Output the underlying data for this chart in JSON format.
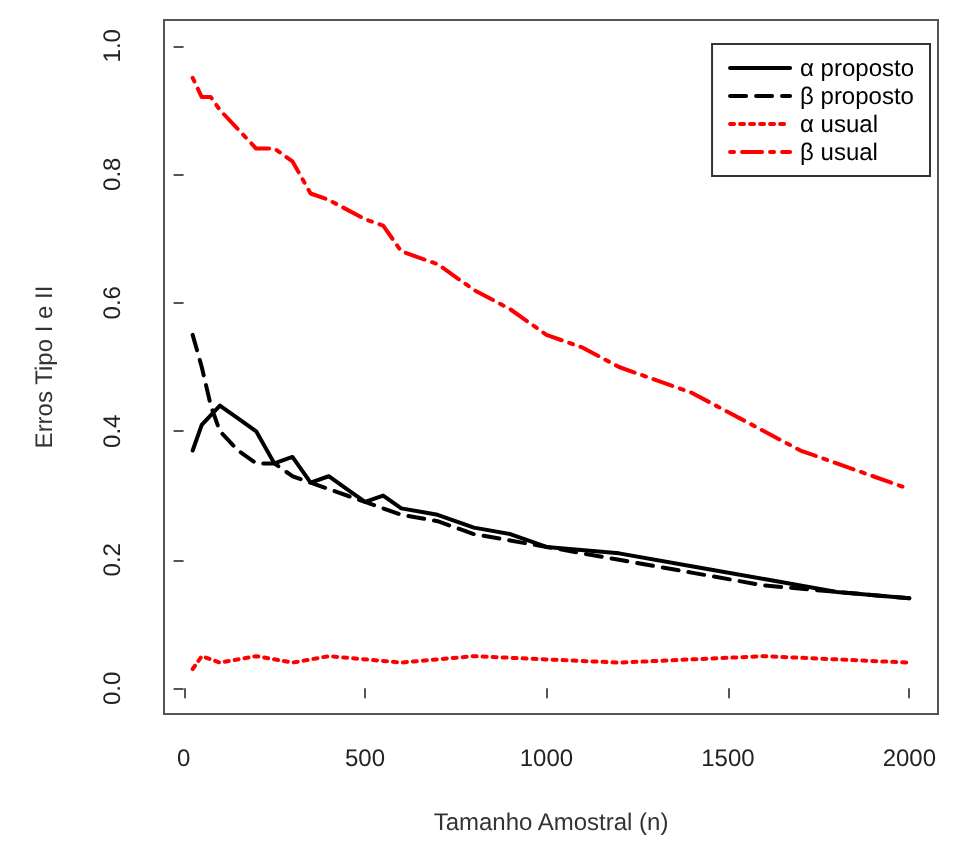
{
  "chart_data": {
    "type": "line",
    "xlabel": "Tamanho Amostral (n)",
    "ylabel": "Erros Tipo I e II",
    "xlim": [
      -54,
      2079
    ],
    "ylim": [
      -0.04,
      1.04
    ],
    "xticks": [
      0,
      500,
      1000,
      1500,
      2000
    ],
    "yticks": [
      {
        "value": 0,
        "label": "0.0"
      },
      {
        "value": 0.2,
        "label": "0.2"
      },
      {
        "value": 0.4,
        "label": "0.4"
      },
      {
        "value": 0.6,
        "label": "0.6"
      },
      {
        "value": 0.8,
        "label": "0.8"
      },
      {
        "value": 1,
        "label": "1.0"
      }
    ],
    "grid": false,
    "legend": "top right",
    "marker": "none",
    "series": [
      {
        "name": "α proposto",
        "color": "#000000",
        "line_style": "solid",
        "x": [
          25,
          50,
          100,
          150,
          200,
          250,
          300,
          350,
          400,
          450,
          500,
          550,
          600,
          700,
          800,
          900,
          1000,
          1200,
          1400,
          1600,
          1800,
          2000
        ],
        "values": [
          0.37,
          0.41,
          0.44,
          0.42,
          0.4,
          0.35,
          0.36,
          0.32,
          0.33,
          0.31,
          0.29,
          0.3,
          0.28,
          0.27,
          0.25,
          0.24,
          0.22,
          0.21,
          0.19,
          0.17,
          0.15,
          0.14
        ]
      },
      {
        "name": "β proposto",
        "color": "#000000",
        "line_style": "dashed",
        "x": [
          25,
          50,
          75,
          100,
          150,
          200,
          250,
          300,
          350,
          400,
          500,
          600,
          700,
          800,
          900,
          1000,
          1200,
          1400,
          1600,
          1800,
          2000
        ],
        "values": [
          0.55,
          0.5,
          0.44,
          0.4,
          0.37,
          0.35,
          0.35,
          0.33,
          0.32,
          0.31,
          0.29,
          0.27,
          0.26,
          0.24,
          0.23,
          0.22,
          0.2,
          0.18,
          0.16,
          0.15,
          0.14
        ]
      },
      {
        "name": "α usual",
        "color": "#ff0000",
        "line_style": "dotted",
        "x": [
          25,
          50,
          100,
          200,
          300,
          400,
          600,
          800,
          1200,
          1600,
          2000
        ],
        "values": [
          0.03,
          0.05,
          0.04,
          0.05,
          0.04,
          0.05,
          0.04,
          0.05,
          0.04,
          0.05,
          0.04
        ]
      },
      {
        "name": "β usual",
        "color": "#ff0000",
        "line_style": "dashdot",
        "x": [
          25,
          50,
          75,
          100,
          150,
          200,
          250,
          300,
          350,
          400,
          500,
          550,
          600,
          700,
          800,
          900,
          1000,
          1100,
          1200,
          1300,
          1400,
          1500,
          1600,
          1700,
          1800,
          1900,
          2000
        ],
        "values": [
          0.95,
          0.92,
          0.92,
          0.9,
          0.87,
          0.84,
          0.84,
          0.82,
          0.77,
          0.76,
          0.73,
          0.72,
          0.68,
          0.66,
          0.62,
          0.59,
          0.55,
          0.53,
          0.5,
          0.48,
          0.46,
          0.43,
          0.4,
          0.37,
          0.35,
          0.33,
          0.31
        ]
      }
    ]
  }
}
